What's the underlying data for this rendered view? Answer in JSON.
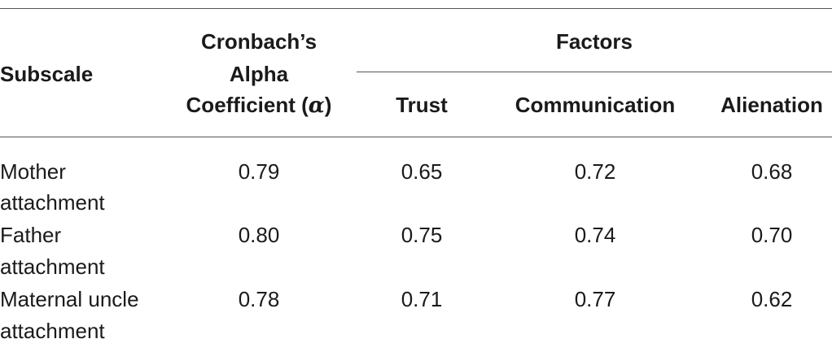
{
  "table": {
    "headers": {
      "subscale": "Subscale",
      "cronbach_line1": "Cronbach’s",
      "cronbach_line2": "Alpha",
      "cronbach_line3_prefix": "Coefficient (",
      "cronbach_line3_symbol": "α",
      "cronbach_line3_suffix": ")",
      "factors": "Factors",
      "trust": "Trust",
      "communication": "Communication",
      "alienation": "Alienation"
    },
    "rows": [
      {
        "subscale_line1": "Mother",
        "subscale_line2": "attachment",
        "alpha": "0.79",
        "trust": "0.65",
        "communication": "0.72",
        "alienation": "0.68"
      },
      {
        "subscale_line1": "Father",
        "subscale_line2": "attachment",
        "alpha": "0.80",
        "trust": "0.75",
        "communication": "0.74",
        "alienation": "0.70"
      },
      {
        "subscale_line1": "Maternal uncle",
        "subscale_line2": "attachment",
        "alpha": "0.78",
        "trust": "0.71",
        "communication": "0.77",
        "alienation": "0.62"
      }
    ]
  }
}
